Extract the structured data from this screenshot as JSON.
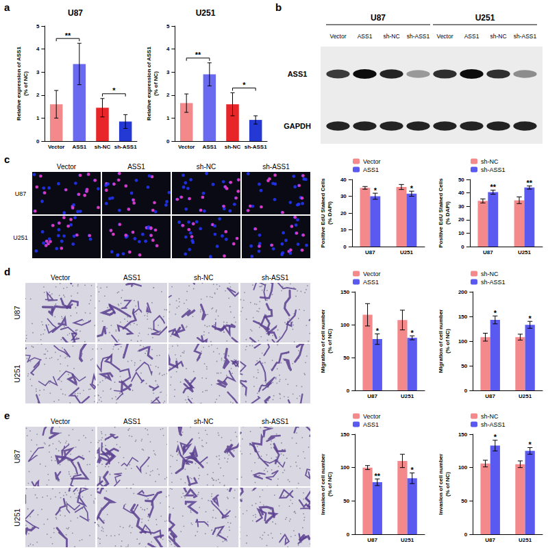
{
  "chart_data": [
    {
      "type": "bar",
      "title": "U87",
      "categories": [
        "Vector",
        "ASS1",
        "sh-NC",
        "sh-ASS1"
      ],
      "values": [
        1.6,
        3.35,
        1.45,
        0.85
      ],
      "errors": [
        0.6,
        0.9,
        0.4,
        0.3
      ],
      "colors": [
        "#f4898c",
        "#6a6af0",
        "#e8262a",
        "#2438d4"
      ],
      "ylabel": "Relative expression of ASS1\n(% of NC)",
      "ylim": [
        0,
        5
      ],
      "yticks": [
        0,
        1,
        2,
        3,
        4,
        5
      ],
      "grid": false,
      "annotations": [
        {
          "from": "Vector",
          "to": "ASS1",
          "label": "**"
        },
        {
          "from": "sh-NC",
          "to": "sh-ASS1",
          "label": "*"
        }
      ]
    },
    {
      "type": "bar",
      "title": "U251",
      "categories": [
        "Vector",
        "ASS1",
        "sh-NC",
        "sh-ASS1"
      ],
      "values": [
        1.65,
        2.9,
        1.6,
        0.92
      ],
      "errors": [
        0.4,
        0.5,
        0.5,
        0.18
      ],
      "colors": [
        "#f4898c",
        "#6a6af0",
        "#e8262a",
        "#2438d4"
      ],
      "ylabel": "Relative expression of ASS1\n(% of NC)",
      "ylim": [
        0,
        5
      ],
      "yticks": [
        0,
        1,
        2,
        3,
        4,
        5
      ],
      "grid": false,
      "annotations": [
        {
          "from": "Vector",
          "to": "ASS1",
          "label": "**"
        },
        {
          "from": "sh-NC",
          "to": "sh-ASS1",
          "label": "*"
        }
      ]
    },
    {
      "type": "bar",
      "categories": [
        "U87",
        "U251"
      ],
      "series": [
        {
          "name": "Vector",
          "color": "#f4898c",
          "values": [
            35,
            35.5
          ],
          "errors": [
            0.8,
            1.5
          ]
        },
        {
          "name": "ASS1",
          "color": "#5a5af0",
          "values": [
            30,
            31.5
          ],
          "errors": [
            1.8,
            1.5
          ],
          "significance": [
            "*",
            "*"
          ]
        }
      ],
      "ylabel": "Positive EdU Stained Cells\n(% DAPI)",
      "ylim": [
        0,
        40
      ],
      "yticks": [
        0,
        10,
        20,
        30,
        40
      ],
      "grid": false,
      "legend": "top-left"
    },
    {
      "type": "bar",
      "categories": [
        "U87",
        "U251"
      ],
      "series": [
        {
          "name": "sh-NC",
          "color": "#f4898c",
          "values": [
            34,
            34.5
          ],
          "errors": [
            1.5,
            2.5
          ]
        },
        {
          "name": "sh-ASS1",
          "color": "#5a5af0",
          "values": [
            40.5,
            44
          ],
          "errors": [
            1.5,
            1.2
          ],
          "significance": [
            "**",
            "**"
          ]
        }
      ],
      "ylabel": "Positive EdU Stained Cells\n(% DAPI)",
      "ylim": [
        0,
        50
      ],
      "yticks": [
        0,
        10,
        20,
        30,
        40,
        50
      ],
      "grid": false,
      "legend": "top-left"
    },
    {
      "type": "bar",
      "categories": [
        "U87",
        "U251"
      ],
      "series": [
        {
          "name": "Vector",
          "color": "#f4898c",
          "values": [
            115,
            107
          ],
          "errors": [
            17,
            15
          ]
        },
        {
          "name": "ASS1",
          "color": "#5a5af0",
          "values": [
            78,
            80
          ],
          "errors": [
            8,
            3
          ],
          "significance": [
            "*",
            "*"
          ]
        }
      ],
      "ylabel": "Migration of cell number\n(% of NC)",
      "ylim": [
        0,
        150
      ],
      "yticks": [
        0,
        50,
        100,
        150
      ],
      "grid": false,
      "legend": "top-left"
    },
    {
      "type": "bar",
      "categories": [
        "U87",
        "U251"
      ],
      "series": [
        {
          "name": "sh-NC",
          "color": "#f4898c",
          "values": [
            108,
            108
          ],
          "errors": [
            8,
            6
          ]
        },
        {
          "name": "sh-ASS1",
          "color": "#5a5af0",
          "values": [
            143,
            133
          ],
          "errors": [
            8,
            7
          ],
          "significance": [
            "*",
            "*"
          ]
        }
      ],
      "ylabel": "Migration of cell number\n(% of NC)",
      "ylim": [
        0,
        200
      ],
      "yticks": [
        0,
        50,
        100,
        150,
        200
      ],
      "grid": false,
      "legend": "top-left"
    },
    {
      "type": "bar",
      "categories": [
        "U87",
        "U251"
      ],
      "series": [
        {
          "name": "Vector",
          "color": "#f4898c",
          "values": [
            100,
            110
          ],
          "errors": [
            3,
            10
          ]
        },
        {
          "name": "ASS1",
          "color": "#5a5af0",
          "values": [
            78,
            84
          ],
          "errors": [
            5,
            8
          ],
          "significance": [
            "**",
            "*"
          ]
        }
      ],
      "ylabel": "Invasion of cell number\n(% of NC)",
      "ylim": [
        0,
        150
      ],
      "yticks": [
        0,
        50,
        100,
        150
      ],
      "grid": false,
      "legend": "top-left"
    },
    {
      "type": "bar",
      "categories": [
        "U87",
        "U251"
      ],
      "series": [
        {
          "name": "sh-NC",
          "color": "#f4898c",
          "values": [
            106,
            105
          ],
          "errors": [
            5,
            5
          ]
        },
        {
          "name": "sh-ASS1",
          "color": "#5a5af0",
          "values": [
            133,
            125
          ],
          "errors": [
            8,
            5
          ],
          "significance": [
            "*",
            "*"
          ]
        }
      ],
      "ylabel": "Invasion of cell number\n(% of NC)",
      "ylim": [
        0,
        150
      ],
      "yticks": [
        0,
        50,
        100,
        150
      ],
      "grid": false,
      "legend": "top-left"
    }
  ],
  "figure": {
    "panel_letters": [
      "a",
      "b",
      "c",
      "d",
      "e"
    ],
    "blot": {
      "groups": [
        {
          "label": "U87",
          "lanes": [
            "Vector",
            "ASS1",
            "sh-NC",
            "sh-ASS1"
          ]
        },
        {
          "label": "U251",
          "lanes": [
            "Vector",
            "ASS1",
            "sh-NC",
            "sh-ASS1"
          ]
        }
      ],
      "rows": [
        {
          "label": "ASS1",
          "intensity": [
            0.75,
            0.95,
            0.85,
            0.35,
            0.8,
            0.95,
            0.8,
            0.4
          ]
        },
        {
          "label": "GAPDH",
          "intensity": [
            0.85,
            0.85,
            0.85,
            0.85,
            0.85,
            0.85,
            0.85,
            0.85
          ]
        }
      ]
    },
    "images": [
      {
        "columns": [
          "Vector",
          "ASS1",
          "sh-NC",
          "sh-ASS1"
        ],
        "rows": [
          "U87",
          "U251"
        ],
        "style": "fluorescence"
      },
      {
        "columns": [
          "Vector",
          "ASS1",
          "sh-NC",
          "sh-ASS1"
        ],
        "rows": [
          "U87",
          "U251"
        ],
        "style": "stain"
      },
      {
        "columns": [
          "Vector",
          "ASS1",
          "sh-NC",
          "sh-ASS1"
        ],
        "rows": [
          "U87",
          "U251"
        ],
        "style": "stain"
      }
    ]
  }
}
